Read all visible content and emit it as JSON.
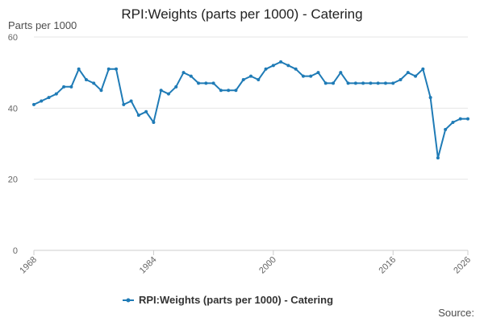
{
  "chart_data": {
    "type": "line",
    "title": "RPI:Weights (parts per 1000) - Catering",
    "ylabel": "Parts per 1000",
    "xlabel": "",
    "ylim": [
      0,
      60
    ],
    "xlim": [
      1968,
      2026
    ],
    "y_ticks": [
      0,
      20,
      40,
      60
    ],
    "x_ticks": [
      1968,
      1984,
      2000,
      2016,
      2026
    ],
    "grid": "horizontal",
    "legend": "bottom",
    "series": [
      {
        "name": "RPI:Weights (parts per 1000) - Catering",
        "color": "#1f7bb6",
        "x": [
          1968,
          1969,
          1970,
          1971,
          1972,
          1973,
          1974,
          1975,
          1976,
          1977,
          1978,
          1979,
          1980,
          1981,
          1982,
          1983,
          1984,
          1985,
          1986,
          1987,
          1988,
          1989,
          1990,
          1991,
          1992,
          1993,
          1994,
          1995,
          1996,
          1997,
          1998,
          1999,
          2000,
          2001,
          2002,
          2003,
          2004,
          2005,
          2006,
          2007,
          2008,
          2009,
          2010,
          2011,
          2012,
          2013,
          2014,
          2015,
          2016,
          2017,
          2018,
          2019,
          2020,
          2021,
          2022,
          2023,
          2024,
          2025,
          2026
        ],
        "values": [
          41,
          42,
          43,
          44,
          46,
          46,
          51,
          48,
          47,
          45,
          51,
          51,
          41,
          42,
          38,
          39,
          36,
          45,
          44,
          46,
          50,
          49,
          47,
          47,
          47,
          45,
          45,
          45,
          48,
          49,
          48,
          51,
          52,
          53,
          52,
          51,
          49,
          49,
          50,
          47,
          47,
          50,
          47,
          47,
          47,
          47,
          47,
          47,
          47,
          48,
          50,
          49,
          51,
          43,
          26,
          34,
          36,
          37,
          37
        ]
      }
    ],
    "source_label": "Source:"
  }
}
